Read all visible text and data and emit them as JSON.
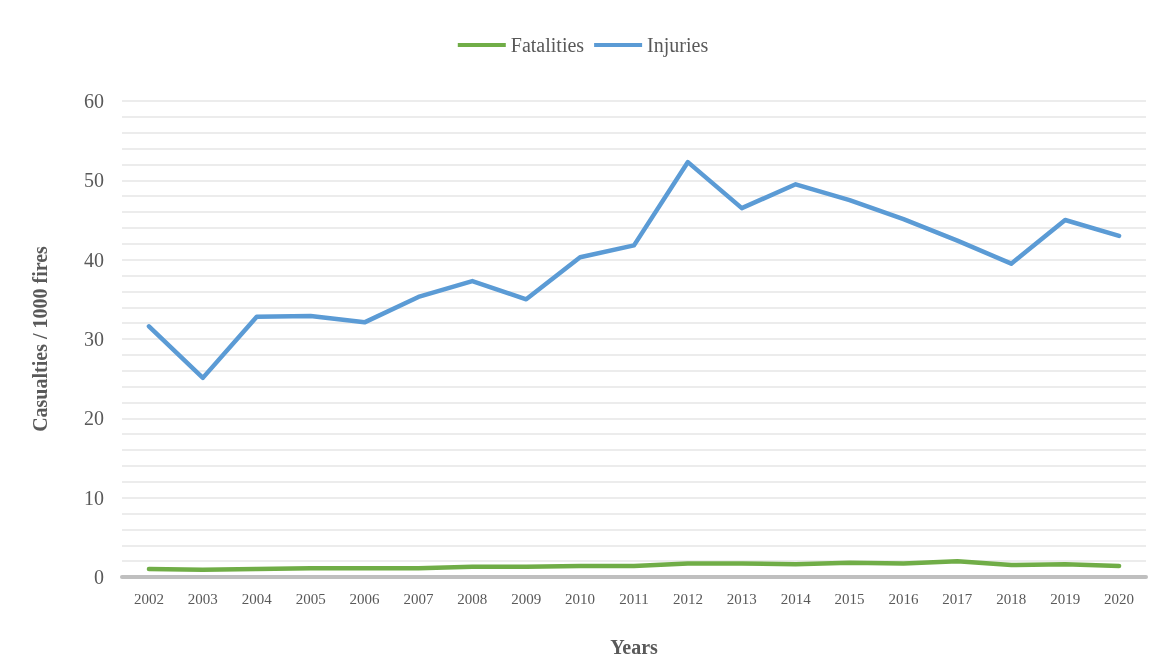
{
  "chart_data": {
    "type": "line",
    "xlabel": "Years",
    "ylabel": "Casualties / 1000 fires",
    "categories": [
      "2002",
      "2003",
      "2004",
      "2005",
      "2006",
      "2007",
      "2008",
      "2009",
      "2010",
      "2011",
      "2012",
      "2013",
      "2014",
      "2015",
      "2016",
      "2017",
      "2018",
      "2019",
      "2020"
    ],
    "series": [
      {
        "name": "Fatalities",
        "color": "#70ad47",
        "values": [
          1.0,
          0.9,
          1.0,
          1.1,
          1.1,
          1.1,
          1.3,
          1.3,
          1.4,
          1.4,
          1.7,
          1.7,
          1.6,
          1.8,
          1.7,
          2.0,
          1.5,
          1.6,
          1.4
        ]
      },
      {
        "name": "Injuries",
        "color": "#5b9bd5",
        "values": [
          31.6,
          25.1,
          32.8,
          32.9,
          32.1,
          35.3,
          37.3,
          35.0,
          40.3,
          41.8,
          52.3,
          46.5,
          49.5,
          47.5,
          45.1,
          42.4,
          39.5,
          45.0,
          43.0
        ]
      }
    ],
    "ylim": [
      0,
      60
    ],
    "yticks": [
      0,
      {
        "value": 2,
        "label": null
      },
      {
        "value": 4,
        "label": null
      },
      {
        "value": 6,
        "label": null
      },
      {
        "value": 8,
        "label": null
      },
      10,
      {
        "value": 12,
        "label": null
      },
      {
        "value": 14,
        "label": null
      },
      {
        "value": 16,
        "label": null
      },
      {
        "value": 18,
        "label": null
      },
      20,
      {
        "value": 22,
        "label": null
      },
      {
        "value": 24,
        "label": null
      },
      {
        "value": 26,
        "label": null
      },
      {
        "value": 28,
        "label": null
      },
      30,
      {
        "value": 32,
        "label": null
      },
      {
        "value": 34,
        "label": null
      },
      {
        "value": 36,
        "label": null
      },
      {
        "value": 38,
        "label": null
      },
      40,
      {
        "value": 42,
        "label": null
      },
      {
        "value": 44,
        "label": null
      },
      {
        "value": 46,
        "label": null
      },
      {
        "value": 48,
        "label": null
      },
      50,
      {
        "value": 52,
        "label": null
      },
      {
        "value": 54,
        "label": null
      },
      {
        "value": 56,
        "label": null
      },
      {
        "value": 58,
        "label": null
      },
      60
    ],
    "grid": "y",
    "legend": "top",
    "marker": "none",
    "line_style": "solid"
  }
}
